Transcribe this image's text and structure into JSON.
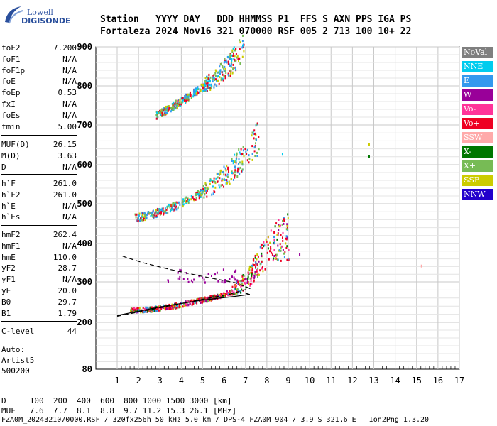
{
  "logo": {
    "top": "Lowell",
    "bottom": "DIGISONDE"
  },
  "header": {
    "line1": "Station   YYYY DAY   DDD HHMMSS P1  FFS S AXN PPS IGA PS",
    "line2": "Fortaleza 2024 Nov16 321 070000 RSF 005 2 713 100 10+ 22"
  },
  "params_group1": [
    {
      "k": "foF2",
      "v": "7.200"
    },
    {
      "k": "foF1",
      "v": "N/A"
    },
    {
      "k": "foF1p",
      "v": "N/A"
    },
    {
      "k": "foE",
      "v": "N/A"
    },
    {
      "k": "foEp",
      "v": "0.53"
    },
    {
      "k": "fxI",
      "v": "N/A"
    },
    {
      "k": "foEs",
      "v": "N/A"
    },
    {
      "k": "fmin",
      "v": "5.00"
    }
  ],
  "params_group2": [
    {
      "k": "MUF(D)",
      "v": "26.15"
    },
    {
      "k": "M(D)",
      "v": "3.63"
    },
    {
      "k": "D",
      "v": "N/A"
    }
  ],
  "params_group3": [
    {
      "k": "h`F",
      "v": "261.0"
    },
    {
      "k": "h`F2",
      "v": "261.0"
    },
    {
      "k": "h`E",
      "v": "N/A"
    },
    {
      "k": "h`Es",
      "v": "N/A"
    }
  ],
  "params_group4": [
    {
      "k": "hmF2",
      "v": "262.4"
    },
    {
      "k": "hmF1",
      "v": "N/A"
    },
    {
      "k": "hmE",
      "v": "110.0"
    },
    {
      "k": "yF2",
      "v": "28.7"
    },
    {
      "k": "yF1",
      "v": "N/A"
    },
    {
      "k": "yE",
      "v": "20.0"
    },
    {
      "k": "B0",
      "v": "29.7"
    },
    {
      "k": "B1",
      "v": "1.79"
    }
  ],
  "clevel": {
    "k": "C-level",
    "v": "44"
  },
  "auto_notes": [
    "Auto:",
    "Artist5",
    "500200"
  ],
  "bottom_lines": {
    "d_row": "D     100  200  400  600  800 1000 1500 3000 [km]",
    "muf_row": "MUF   7.6  7.7  8.1  8.8  9.7 11.2 15.3 26.1 [MHz]",
    "footer": "FZA0M_2024321070000.RSF / 320fx256h 50 kHz 5.0 km / DPS-4 FZA0M 904 / 3.9 S 321.6 E   Ion2Png 1.3.20"
  },
  "legend": [
    {
      "label": "NoVal",
      "bg": "#7f7f7f",
      "fg": "#ffffff"
    },
    {
      "label": "NNE",
      "bg": "#00ccee",
      "fg": "#ffffff"
    },
    {
      "label": "E",
      "bg": "#3399ee",
      "fg": "#ffffff"
    },
    {
      "label": "W",
      "bg": "#990099",
      "fg": "#ffffff"
    },
    {
      "label": "Vo-",
      "bg": "#ff3399",
      "fg": "#ffffff"
    },
    {
      "label": "Vo+",
      "bg": "#ee0022",
      "fg": "#ffffff"
    },
    {
      "label": "SSW",
      "bg": "#ffaaaa",
      "fg": "#ffffff"
    },
    {
      "label": "X-",
      "bg": "#007700",
      "fg": "#ffffff"
    },
    {
      "label": "X+",
      "bg": "#77bb55",
      "fg": "#ffffff"
    },
    {
      "label": "SSE",
      "bg": "#cccc00",
      "fg": "#ffffff"
    },
    {
      "label": "NNW",
      "bg": "#2200cc",
      "fg": "#ffffff"
    }
  ],
  "chart_data": {
    "type": "scatter",
    "x_ticks": [
      1,
      2,
      3,
      4,
      5,
      6,
      7,
      8,
      9,
      10,
      11,
      12,
      13,
      14,
      15,
      16,
      17
    ],
    "y_ticks": [
      80,
      200,
      300,
      400,
      500,
      600,
      700,
      800,
      900
    ],
    "xlim": [
      1,
      17
    ],
    "grid": true,
    "traces": [
      {
        "id": "O-trace F2 1st hop",
        "points": [
          [
            1.6,
            231
          ],
          [
            2.5,
            233
          ],
          [
            3.5,
            240
          ],
          [
            4.5,
            251
          ],
          [
            5.5,
            262
          ],
          [
            6.3,
            276
          ],
          [
            6.8,
            292
          ],
          [
            7.2,
            315
          ],
          [
            7.6,
            345
          ],
          [
            8.0,
            375
          ],
          [
            8.5,
            400
          ],
          [
            9.0,
            410
          ]
        ]
      },
      {
        "id": "F2 2nd hop",
        "points": [
          [
            1.8,
            465
          ],
          [
            2.5,
            472
          ],
          [
            3.5,
            490
          ],
          [
            4.5,
            515
          ],
          [
            5.5,
            545
          ],
          [
            6.3,
            580
          ],
          [
            7.0,
            620
          ],
          [
            7.6,
            665
          ]
        ]
      },
      {
        "id": "F2 3rd hop",
        "points": [
          [
            2.8,
            725
          ],
          [
            3.5,
            745
          ],
          [
            4.5,
            780
          ],
          [
            5.5,
            815
          ],
          [
            6.3,
            855
          ],
          [
            6.9,
            895
          ]
        ]
      }
    ],
    "profile_dashed": [
      [
        1.0,
        215
      ],
      [
        3.0,
        236
      ],
      [
        5.0,
        257
      ],
      [
        6.3,
        270
      ],
      [
        7.2,
        284
      ],
      [
        6.5,
        298
      ],
      [
        5.0,
        314
      ],
      [
        3.5,
        332
      ],
      [
        2.2,
        350
      ],
      [
        1.2,
        368
      ]
    ],
    "profile_solid": [
      [
        1.0,
        217
      ],
      [
        3.0,
        238
      ],
      [
        5.0,
        255
      ],
      [
        6.5,
        264
      ],
      [
        7.2,
        269
      ],
      [
        7.0,
        272
      ]
    ],
    "isolated_points": [
      [
        9.5,
        375
      ],
      [
        12.75,
        655
      ],
      [
        12.75,
        625
      ],
      [
        15.2,
        345
      ],
      [
        8.7,
        630
      ]
    ]
  }
}
